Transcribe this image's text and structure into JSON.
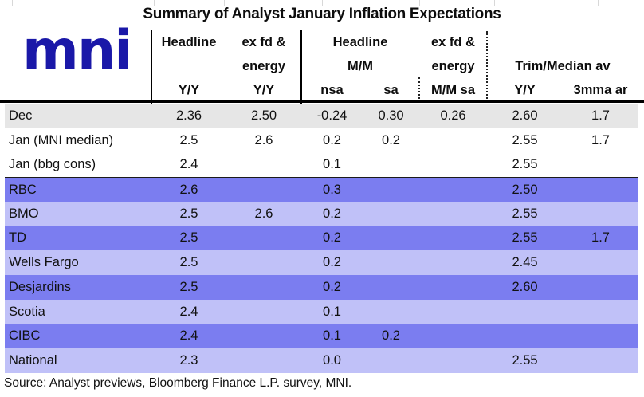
{
  "title": "Summary of Analyst January Inflation Expectations",
  "logo": {
    "text": "mni"
  },
  "footer": {
    "source": "Source: Analyst previews, Bloomberg Finance L.P. survey, MNI."
  },
  "colors": {
    "row-dark": "#7b7df0",
    "row-light": "#c0c1f8",
    "row-grey": "#e6e6e6",
    "logo-navy": "#1a18a8",
    "text": "#111111"
  },
  "chart_data": {
    "type": "table",
    "title": "Summary of Analyst January Inflation Expectations",
    "header": {
      "headline_yy_line1": "Headline",
      "exfd_yy_line1": "ex fd &",
      "exfd_yy_line2": "energy",
      "headline_mm_line1": "Headline",
      "headline_mm_line2": "M/M",
      "exfd_mm_line1": "ex fd &",
      "exfd_mm_line2": "energy",
      "trim_line2": "Trim/Median av",
      "sub": [
        "Y/Y",
        "Y/Y",
        "nsa",
        "sa",
        "M/M sa",
        "Y/Y",
        "3mma ar"
      ]
    },
    "column_keys": [
      "headline-yy",
      "exfd-energy-yy",
      "mm-nsa",
      "mm-sa",
      "exfd-energy-mm-sa",
      "trim-median-yy",
      "trim-median-3mma-ar"
    ],
    "rows": [
      {
        "label": "Dec",
        "style": "grey",
        "divider_above": false,
        "values": [
          "2.36",
          "2.50",
          "-0.24",
          "0.30",
          "0.26",
          "2.60",
          "1.7"
        ]
      },
      {
        "label": "Jan (MNI median)",
        "style": "white",
        "divider_above": false,
        "values": [
          "2.5",
          "2.6",
          "0.2",
          "0.2",
          "",
          "2.55",
          "1.7"
        ]
      },
      {
        "label": "Jan (bbg cons)",
        "style": "white",
        "divider_above": false,
        "values": [
          "2.4",
          "",
          "0.1",
          "",
          "",
          "2.55",
          ""
        ]
      },
      {
        "label": "RBC",
        "style": "dark",
        "divider_above": true,
        "values": [
          "2.6",
          "",
          "0.3",
          "",
          "",
          "2.50",
          ""
        ]
      },
      {
        "label": "BMO",
        "style": "light",
        "divider_above": false,
        "values": [
          "2.5",
          "2.6",
          "0.2",
          "",
          "",
          "2.55",
          ""
        ]
      },
      {
        "label": "TD",
        "style": "dark",
        "divider_above": false,
        "values": [
          "2.5",
          "",
          "0.2",
          "",
          "",
          "2.55",
          "1.7"
        ]
      },
      {
        "label": "Wells Fargo",
        "style": "light",
        "divider_above": false,
        "values": [
          "2.5",
          "",
          "0.2",
          "",
          "",
          "2.45",
          ""
        ]
      },
      {
        "label": "Desjardins",
        "style": "dark",
        "divider_above": false,
        "values": [
          "2.5",
          "",
          "0.2",
          "",
          "",
          "2.60",
          ""
        ]
      },
      {
        "label": "Scotia",
        "style": "light",
        "divider_above": false,
        "values": [
          "2.4",
          "",
          "0.1",
          "",
          "",
          "",
          ""
        ]
      },
      {
        "label": "CIBC",
        "style": "dark",
        "divider_above": false,
        "values": [
          "2.4",
          "",
          "0.1",
          "0.2",
          "",
          "",
          ""
        ]
      },
      {
        "label": "National",
        "style": "light",
        "divider_above": false,
        "values": [
          "2.3",
          "",
          "0.0",
          "",
          "",
          "2.55",
          ""
        ]
      }
    ]
  }
}
